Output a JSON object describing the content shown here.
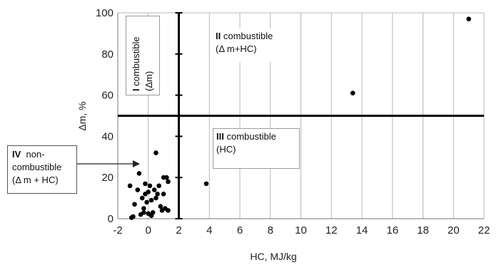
{
  "chart_data": {
    "type": "scatter",
    "xlabel": "HC, MJ/kg",
    "ylabel": "Δm, %",
    "xlim": [
      -2,
      22
    ],
    "ylim": [
      0,
      100
    ],
    "xticks": [
      "-2",
      "0",
      "2",
      "4",
      "6",
      "8",
      "10",
      "12",
      "14",
      "16",
      "18",
      "20",
      "22"
    ],
    "yticks": [
      "0",
      "20",
      "40",
      "60",
      "80",
      "100"
    ],
    "grid": "vertical",
    "divider_x": 2,
    "divider_y": 50,
    "points": [
      {
        "x": -1.2,
        "y": 16
      },
      {
        "x": -0.9,
        "y": 7
      },
      {
        "x": -0.7,
        "y": 14
      },
      {
        "x": -0.5,
        "y": 2
      },
      {
        "x": -0.4,
        "y": 10
      },
      {
        "x": -0.3,
        "y": 5
      },
      {
        "x": -0.2,
        "y": 17
      },
      {
        "x": -0.2,
        "y": 12
      },
      {
        "x": -0.1,
        "y": 8
      },
      {
        "x": 0.0,
        "y": 13
      },
      {
        "x": 0.1,
        "y": 16
      },
      {
        "x": 0.2,
        "y": 9
      },
      {
        "x": 0.3,
        "y": 3
      },
      {
        "x": 0.4,
        "y": 14
      },
      {
        "x": 0.5,
        "y": 10
      },
      {
        "x": 0.5,
        "y": 32
      },
      {
        "x": 0.7,
        "y": 16
      },
      {
        "x": 0.8,
        "y": 6
      },
      {
        "x": 0.9,
        "y": 4
      },
      {
        "x": 1.0,
        "y": 12
      },
      {
        "x": 1.0,
        "y": 20
      },
      {
        "x": 1.1,
        "y": 5
      },
      {
        "x": 1.2,
        "y": 20
      },
      {
        "x": 1.3,
        "y": 18
      },
      {
        "x": 1.3,
        "y": 4
      },
      {
        "x": -1.1,
        "y": 0.5
      },
      {
        "x": -1.0,
        "y": 1
      },
      {
        "x": -0.6,
        "y": 22
      },
      {
        "x": 0.0,
        "y": 2.5
      },
      {
        "x": -0.3,
        "y": 3
      },
      {
        "x": 0.2,
        "y": 1.5
      },
      {
        "x": 0.6,
        "y": 12
      },
      {
        "x": 3.8,
        "y": 17
      },
      {
        "x": 13.4,
        "y": 61
      },
      {
        "x": 21.0,
        "y": 97
      }
    ]
  },
  "regions": {
    "r1_num": "I",
    "r1_text": "combustible",
    "r1_sub": "(Δm)",
    "r2_num": "II",
    "r2_text": "combustible",
    "r2_sub": "(Δ m+HC)",
    "r3_num": "III",
    "r3_text": "combustible",
    "r3_sub": "(HC)",
    "r4_num": "IV",
    "r4_text1": "non-",
    "r4_text2": "combustible",
    "r4_sub": "(Δ m + HC)"
  }
}
